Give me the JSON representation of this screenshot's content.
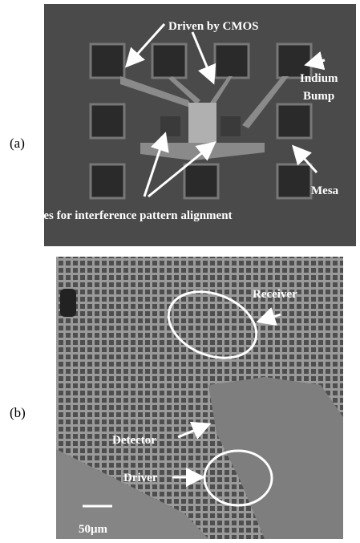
{
  "panels": [
    {
      "label": "(a)",
      "annotations": [
        "Driven by CMOS",
        "Indium",
        "Bump",
        "Mesa",
        "Holes for interference pattern alignment"
      ]
    },
    {
      "label": "(b)",
      "annotations": [
        "Receiver",
        "Detector",
        "Driver",
        "50μm"
      ]
    }
  ]
}
